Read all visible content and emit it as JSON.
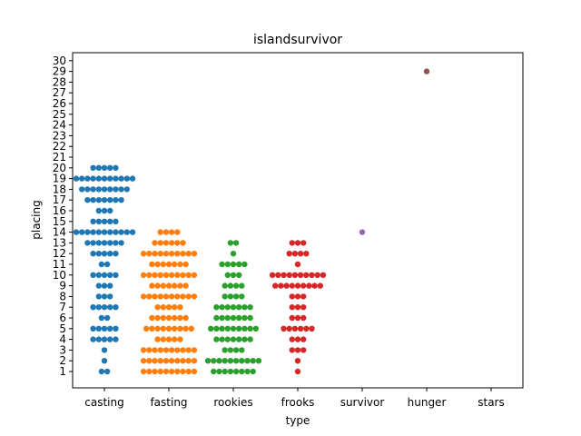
{
  "chart_data": {
    "type": "scatter",
    "title": "islandsurvivor",
    "xlabel": "type",
    "ylabel": "placing",
    "categories": [
      "casting",
      "fasting",
      "rookies",
      "frooks",
      "survivor",
      "hunger",
      "stars"
    ],
    "yticks": [
      1,
      2,
      3,
      4,
      5,
      6,
      7,
      8,
      9,
      10,
      11,
      12,
      13,
      14,
      15,
      16,
      17,
      18,
      19,
      20,
      21,
      22,
      23,
      24,
      25,
      26,
      27,
      28,
      29,
      30
    ],
    "ylim": [
      0,
      31
    ],
    "grid": false,
    "colors": [
      "#1f77b4",
      "#ff7f0e",
      "#2ca02c",
      "#d62728",
      "#9467bd",
      "#8c564b",
      "#e377c2"
    ],
    "series": [
      {
        "category": "casting",
        "counts": {
          "1": 2,
          "2": 1,
          "3": 1,
          "4": 5,
          "5": 5,
          "6": 2,
          "7": 5,
          "8": 3,
          "9": 3,
          "10": 5,
          "11": 2,
          "12": 5,
          "13": 7,
          "14": 11,
          "15": 5,
          "16": 3,
          "17": 7,
          "18": 9,
          "19": 11,
          "20": 5
        }
      },
      {
        "category": "fasting",
        "counts": {
          "1": 10,
          "2": 10,
          "3": 10,
          "4": 5,
          "5": 9,
          "6": 7,
          "7": 5,
          "8": 10,
          "9": 7,
          "10": 10,
          "11": 7,
          "12": 10,
          "13": 6,
          "14": 4
        }
      },
      {
        "category": "rookies",
        "counts": {
          "1": 8,
          "2": 10,
          "3": 4,
          "4": 7,
          "5": 9,
          "6": 7,
          "7": 7,
          "8": 4,
          "9": 4,
          "10": 3,
          "11": 5,
          "12": 1,
          "13": 2
        }
      },
      {
        "category": "frooks",
        "counts": {
          "1": 1,
          "2": 1,
          "3": 3,
          "4": 3,
          "5": 6,
          "6": 3,
          "7": 3,
          "8": 3,
          "9": 9,
          "10": 10,
          "11": 1,
          "12": 4,
          "13": 3
        }
      },
      {
        "category": "survivor",
        "counts": {
          "14": 1
        }
      },
      {
        "category": "hunger",
        "counts": {
          "29": 1
        }
      },
      {
        "category": "stars",
        "counts": {}
      }
    ]
  }
}
